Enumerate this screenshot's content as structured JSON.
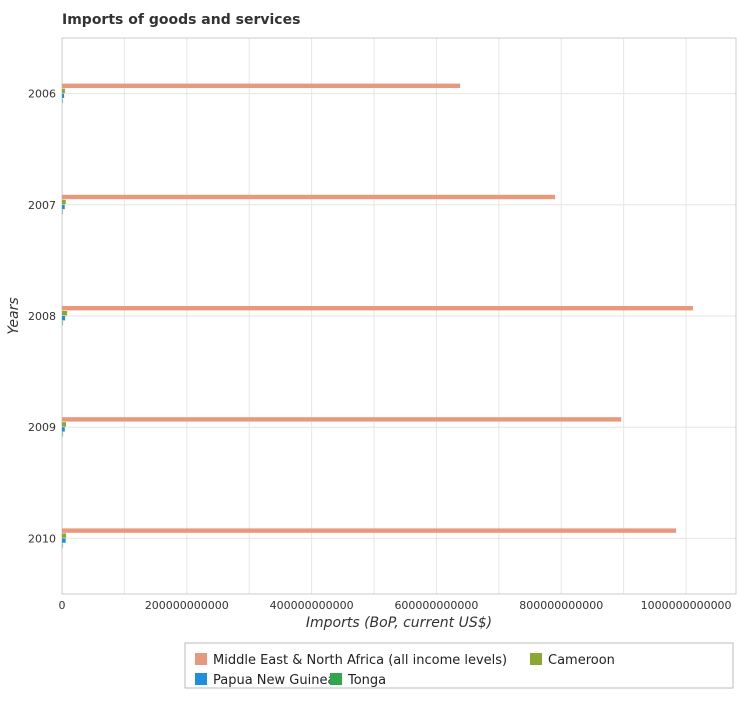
{
  "chart_data": {
    "type": "bar",
    "orientation": "horizontal",
    "title": "Imports of goods and services",
    "xlabel": "Imports (BoP, current US$)",
    "ylabel": "Years",
    "categories": [
      "2006",
      "2007",
      "2008",
      "2009",
      "2010"
    ],
    "xlim": [
      0,
      1080000000000
    ],
    "xticks": [
      0,
      200000000000,
      400000000000,
      600000000000,
      800000000000,
      1000000000000
    ],
    "xtick_labels": [
      "0",
      "200000000000",
      "400000000000",
      "600000000000",
      "800000000000",
      "1000000000000"
    ],
    "grid": true,
    "legend_position": "bottom",
    "series": [
      {
        "name": "Middle East & North Africa (all income levels)",
        "color": "#e8987c",
        "values": [
          638000000000,
          790000000000,
          1011000000000,
          896000000000,
          984000000000
        ]
      },
      {
        "name": "Cameroon",
        "color": "#8aa832",
        "values": [
          4700000000,
          6000000000,
          8300000000,
          6500000000,
          6600000000
        ]
      },
      {
        "name": "Papua New Guinea",
        "color": "#1f8fe0",
        "values": [
          3400000000,
          4400000000,
          5000000000,
          4500000000,
          5900000000
        ]
      },
      {
        "name": "Tonga",
        "color": "#2ea84a",
        "values": [
          160000000,
          190000000,
          230000000,
          230000000,
          240000000
        ]
      }
    ]
  }
}
